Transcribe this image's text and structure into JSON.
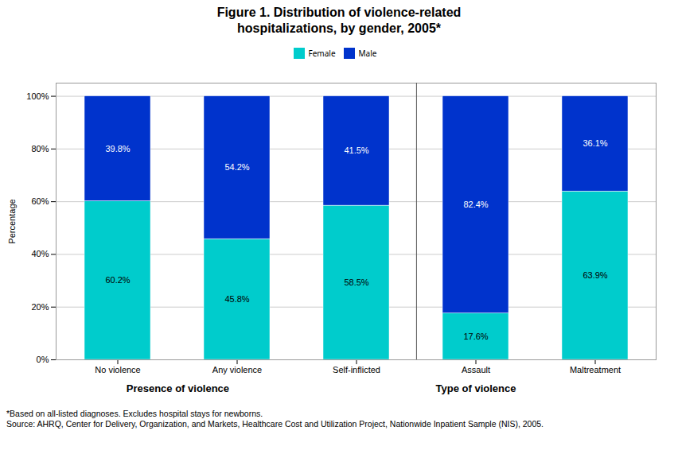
{
  "chart_data": {
    "type": "bar",
    "title": "Figure 1. Distribution of violence-related\nhospitalizations, by gender, 2005*",
    "categories": [
      "No violence",
      "Any violence",
      "Self-inflicted",
      "Assault",
      "Maltreatment"
    ],
    "series": [
      {
        "name": "Female",
        "color": "#00CCCC",
        "values": [
          60.2,
          45.8,
          58.5,
          17.6,
          63.9
        ],
        "value_labels": [
          "60.2%",
          "45.8%",
          "58.5%",
          "17.6%",
          "63.9%"
        ]
      },
      {
        "name": "Male",
        "color": "#0033CC",
        "values": [
          39.8,
          54.2,
          41.5,
          82.4,
          36.1
        ],
        "value_labels": [
          "39.8%",
          "54.2%",
          "41.5%",
          "82.4%",
          "36.1%"
        ]
      }
    ],
    "stacked": true,
    "data_labels": true,
    "ylabel": "Percentage",
    "ylim": [
      0,
      105
    ],
    "yticks": [
      {
        "value": 0,
        "label": "0%"
      },
      {
        "value": 20,
        "label": "20%"
      },
      {
        "value": 40,
        "label": "40%"
      },
      {
        "value": 60,
        "label": "60%"
      },
      {
        "value": 80,
        "label": "80%"
      },
      {
        "value": 100,
        "label": "100%"
      }
    ],
    "grid": true,
    "legend": "top",
    "annotations": [
      {
        "text": "Presence of violence",
        "under": [
          "No violence",
          "Any violence"
        ]
      },
      {
        "text": "Type of violence",
        "under": [
          "Self-inflicted",
          "Assault",
          "Maltreatment"
        ]
      },
      {
        "line_after": "Self-inflicted"
      }
    ],
    "footnotes": [
      "*Based on all-listed diagnoses. Excludes hospital stays for newborns.",
      "Source: AHRQ, Center for Delivery, Organization, and Markets, Healthcare Cost and Utilization Project, Nationwide Inpatient Sample (NIS), 2005."
    ]
  }
}
